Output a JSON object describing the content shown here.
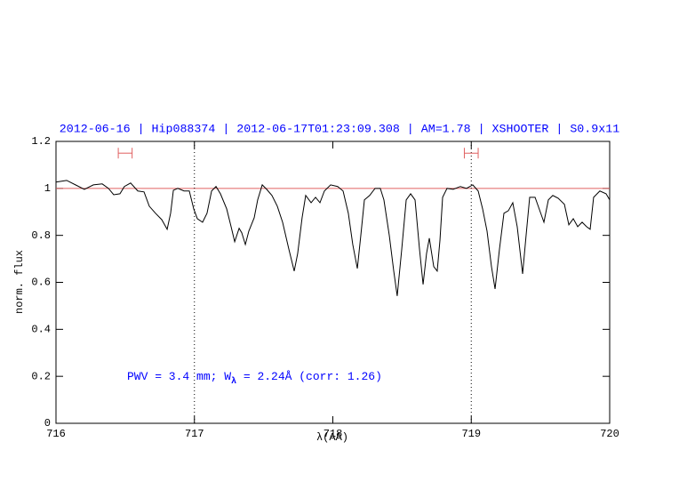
{
  "chart_data": {
    "type": "line",
    "title": "2012-06-16 | Hip088374 | 2012-06-17T01:23:09.308 | AM=1.78 | XSHOOTER | S0.9x11",
    "x_label": "λ(AA)",
    "y_label": "norm. flux",
    "annotation": [
      "PWV = 3.4 mm; W",
      "λ",
      " = 2.24Å (corr: 1.26)"
    ],
    "xlim": [
      716,
      720
    ],
    "ylim": [
      0,
      1.2
    ],
    "xticks": [
      716,
      717,
      718,
      719,
      720
    ],
    "yticks": [
      0,
      0.2,
      0.4,
      0.6,
      0.8,
      1,
      1.2
    ],
    "reference_line": {
      "value": 1,
      "color": "#e06060"
    },
    "vertical_markers": [
      717,
      719
    ],
    "ranges": [
      {
        "x": [
          716.45,
          716.55
        ],
        "y": 1.15,
        "color": "#e06060"
      },
      {
        "x": [
          718.95,
          719.05
        ],
        "y": 1.15,
        "color": "#e06060"
      }
    ],
    "series": [
      {
        "color": "#000000",
        "x": [
          716.0,
          716.077,
          716.141,
          716.205,
          716.27,
          716.334,
          716.379,
          716.417,
          716.462,
          716.494,
          716.539,
          716.591,
          716.636,
          716.674,
          716.719,
          716.764,
          716.803,
          716.828,
          716.848,
          716.88,
          716.925,
          716.963,
          716.995,
          717.021,
          717.059,
          717.091,
          717.124,
          717.156,
          717.188,
          717.233,
          717.265,
          717.291,
          717.323,
          717.342,
          717.368,
          717.393,
          717.432,
          717.457,
          717.49,
          717.522,
          717.56,
          717.599,
          717.637,
          717.682,
          717.721,
          717.746,
          717.778,
          717.804,
          717.843,
          717.875,
          717.907,
          717.939,
          717.984,
          718.035,
          718.074,
          718.112,
          718.144,
          718.177,
          718.202,
          718.228,
          718.266,
          718.305,
          718.343,
          718.369,
          718.408,
          718.44,
          718.465,
          718.498,
          718.53,
          718.562,
          718.594,
          718.626,
          718.652,
          718.677,
          718.697,
          718.729,
          718.754,
          718.774,
          718.793,
          718.825,
          718.87,
          718.921,
          718.966,
          719.011,
          719.05,
          719.082,
          719.114,
          719.146,
          719.172,
          719.204,
          719.236,
          719.268,
          719.3,
          719.332,
          719.371,
          719.396,
          719.422,
          719.461,
          719.493,
          719.525,
          719.557,
          719.589,
          719.628,
          719.673,
          719.705,
          719.737,
          719.769,
          719.801,
          719.833,
          719.859,
          719.884,
          719.929,
          719.974,
          720.0
        ],
        "values": [
          1.027,
          1.034,
          1.015,
          0.996,
          1.015,
          1.019,
          1.0,
          0.973,
          0.977,
          1.008,
          1.023,
          0.989,
          0.985,
          0.924,
          0.894,
          0.867,
          0.826,
          0.894,
          0.992,
          1.0,
          0.989,
          0.989,
          0.913,
          0.871,
          0.856,
          0.894,
          0.989,
          1.008,
          0.977,
          0.913,
          0.837,
          0.773,
          0.83,
          0.811,
          0.761,
          0.818,
          0.875,
          0.951,
          1.015,
          0.996,
          0.97,
          0.924,
          0.856,
          0.742,
          0.648,
          0.723,
          0.875,
          0.97,
          0.939,
          0.962,
          0.939,
          0.989,
          1.015,
          1.008,
          0.989,
          0.894,
          0.761,
          0.659,
          0.799,
          0.951,
          0.97,
          1.0,
          1.0,
          0.951,
          0.799,
          0.648,
          0.542,
          0.742,
          0.951,
          0.977,
          0.951,
          0.742,
          0.591,
          0.723,
          0.788,
          0.667,
          0.648,
          0.78,
          0.962,
          1.0,
          0.996,
          1.008,
          1.0,
          1.015,
          0.989,
          0.913,
          0.818,
          0.667,
          0.572,
          0.742,
          0.894,
          0.905,
          0.939,
          0.837,
          0.636,
          0.799,
          0.962,
          0.962,
          0.909,
          0.856,
          0.951,
          0.97,
          0.958,
          0.932,
          0.845,
          0.871,
          0.837,
          0.856,
          0.837,
          0.826,
          0.962,
          0.989,
          0.977,
          0.951
        ]
      }
    ]
  }
}
